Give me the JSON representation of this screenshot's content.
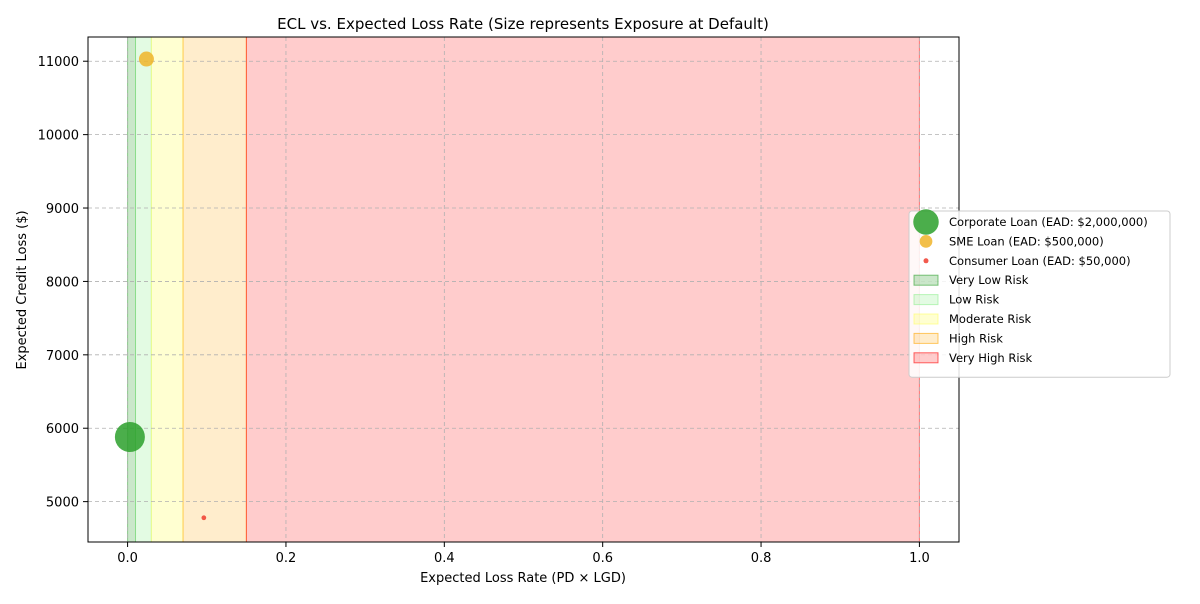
{
  "chart_data": {
    "type": "scatter",
    "title": "ECL vs. Expected Loss Rate (Size represents Exposure at Default)",
    "xlabel": "Expected Loss Rate (PD × LGD)",
    "ylabel": "Expected Credit Loss ($)",
    "xlim": [
      -0.05,
      1.05
    ],
    "ylim": [
      4450,
      11330
    ],
    "xticks": [
      0.0,
      0.2,
      0.4,
      0.6,
      0.8,
      1.0
    ],
    "xtick_labels": [
      "0.0",
      "0.2",
      "0.4",
      "0.6",
      "0.8",
      "1.0"
    ],
    "yticks": [
      5000,
      6000,
      7000,
      8000,
      9000,
      10000,
      11000
    ],
    "ytick_labels": [
      "5000",
      "6000",
      "7000",
      "8000",
      "9000",
      "10000",
      "11000"
    ],
    "grid": true,
    "legend_position": "center-right outside",
    "risk_bands": [
      {
        "label": "Very Low Risk",
        "x0": 0.0,
        "x1": 0.01,
        "color": "#2ca02c",
        "opacity": 0.25
      },
      {
        "label": "Low Risk",
        "x0": 0.01,
        "x1": 0.03,
        "color": "#90ee90",
        "opacity": 0.25
      },
      {
        "label": "Moderate Risk",
        "x0": 0.03,
        "x1": 0.07,
        "color": "#ffff66",
        "opacity": 0.3
      },
      {
        "label": "High Risk",
        "x0": 0.07,
        "x1": 0.15,
        "color": "#ffa500",
        "opacity": 0.2
      },
      {
        "label": "Very High Risk",
        "x0": 0.15,
        "x1": 1.0,
        "color": "#ff0000",
        "opacity": 0.2
      }
    ],
    "series": [
      {
        "name": "Corporate Loan (EAD: $2,000,000)",
        "x": 0.0029,
        "y": 5880,
        "ead": 2000000,
        "color": "#2ca02c"
      },
      {
        "name": "SME Loan (EAD: $500,000)",
        "x": 0.0238,
        "y": 11030,
        "ead": 500000,
        "color": "#f0b429"
      },
      {
        "name": "Consumer Loan (EAD: $50,000)",
        "x": 0.0963,
        "y": 4780,
        "ead": 50000,
        "color": "#f03c2e"
      }
    ]
  }
}
